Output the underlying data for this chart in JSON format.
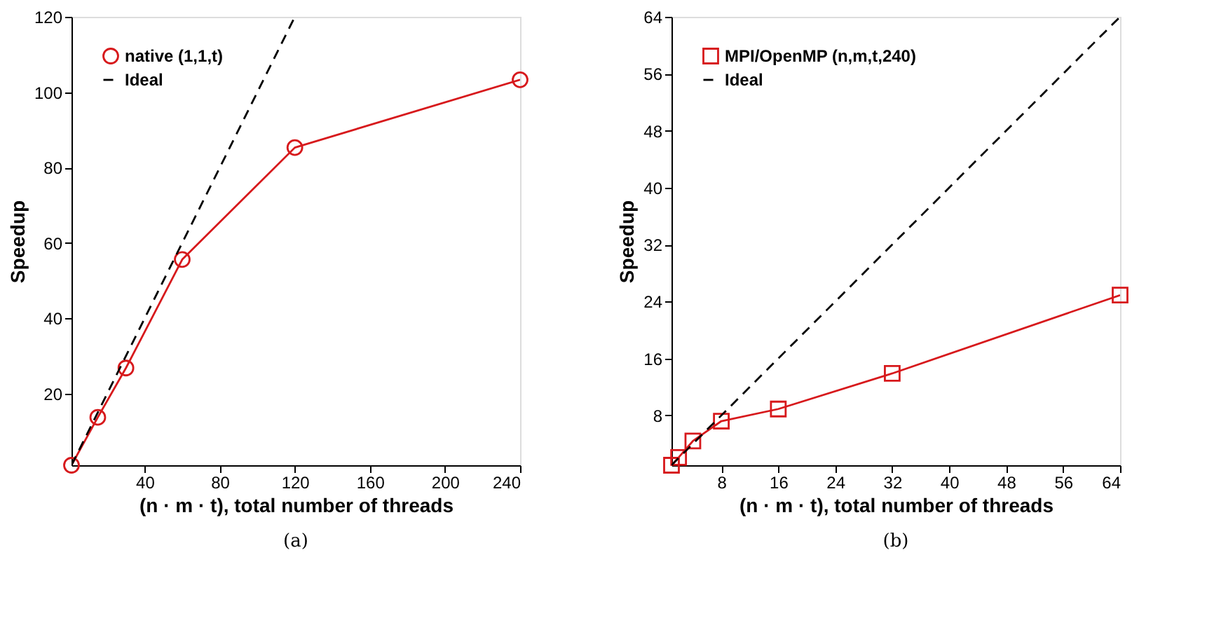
{
  "chart_data": [
    {
      "type": "line",
      "xlabel": "(n · m · t), total number of threads",
      "ylabel": "Speedup",
      "annotations": [
        "(a)"
      ],
      "xlim": [
        1,
        240
      ],
      "ylim": [
        1,
        120
      ],
      "xticks": [
        40,
        80,
        120,
        160,
        200,
        240
      ],
      "yticks": [
        20,
        40,
        60,
        80,
        100,
        120
      ],
      "legend": "top left",
      "grid": false,
      "series": [
        {
          "name": "native (1,1,t)",
          "color": "#d7191c",
          "marker": "circle",
          "line_style": "solid",
          "x": [
            1,
            15,
            30,
            60,
            120,
            240
          ],
          "values": [
            1,
            13.7,
            26.8,
            55.6,
            85.3,
            103.3
          ]
        },
        {
          "name": "Ideal",
          "color": "#000000",
          "marker": "none",
          "line_style": "dashed",
          "x": [
            1,
            120
          ],
          "values": [
            1,
            120
          ]
        }
      ]
    },
    {
      "type": "line",
      "xlabel": "(n · m · t), total number of threads",
      "ylabel": "Speedup",
      "annotations": [
        "(b)"
      ],
      "xlim": [
        1,
        64
      ],
      "ylim": [
        1,
        64
      ],
      "xticks": [
        8,
        16,
        24,
        32,
        40,
        48,
        56,
        64
      ],
      "yticks": [
        8,
        16,
        24,
        32,
        40,
        48,
        56,
        64
      ],
      "legend": "top left",
      "grid": false,
      "series": [
        {
          "name": "MPI/OpenMP (n,m,t,240)",
          "color": "#d7191c",
          "marker": "square",
          "line_style": "solid",
          "x": [
            1,
            2,
            4,
            8,
            16,
            32,
            64
          ],
          "values": [
            1,
            2.1,
            4.4,
            7.2,
            8.9,
            13.9,
            24.9
          ]
        },
        {
          "name": "Ideal",
          "color": "#000000",
          "marker": "none",
          "line_style": "dashed",
          "x": [
            1,
            64
          ],
          "values": [
            1,
            64
          ]
        }
      ]
    }
  ]
}
